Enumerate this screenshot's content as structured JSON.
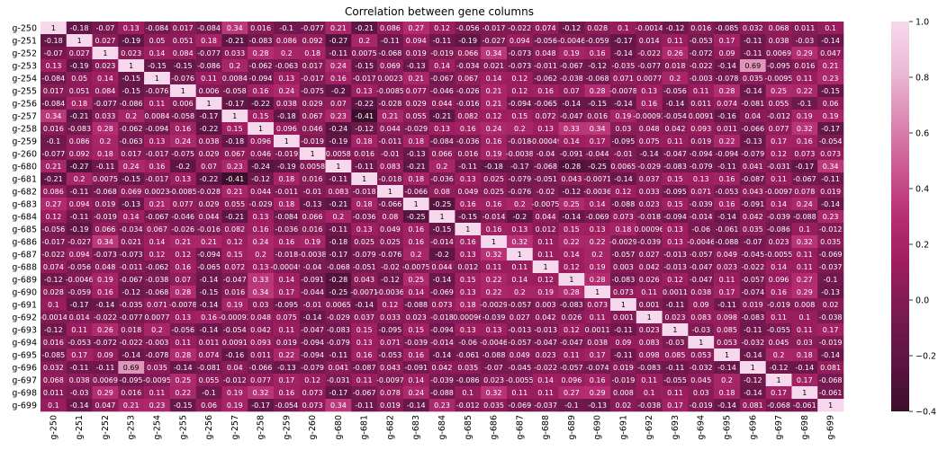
{
  "chart_data": {
    "type": "heatmap",
    "title": "Correlation between gene columns",
    "xlabel": "",
    "ylabel": "",
    "labels": [
      "g-250",
      "g-251",
      "g-252",
      "g-253",
      "g-254",
      "g-255",
      "g-256",
      "g-257",
      "g-258",
      "g-259",
      "g-260",
      "g-680",
      "g-681",
      "g-682",
      "g-683",
      "g-684",
      "g-685",
      "g-686",
      "g-687",
      "g-688",
      "g-689",
      "g-690",
      "g-691",
      "g-692",
      "g-693",
      "g-694",
      "g-695",
      "g-696",
      "g-697",
      "g-698",
      "g-699"
    ],
    "matrix": [
      [
        "1",
        "-0.18",
        "-0.07",
        "0.13",
        "-0.084",
        "0.017",
        "-0.084",
        "0.34",
        "0.016",
        "-0.1",
        "-0.077",
        "0.21",
        "-0.21",
        "0.086",
        "0.27",
        "0.12",
        "-0.056",
        "-0.017",
        "-0.022",
        "0.074",
        "-0.12",
        "0.028",
        "0.1",
        "-0.0014",
        "-0.12",
        "0.016",
        "-0.085",
        "0.032",
        "0.068",
        "0.011",
        "0.1"
      ],
      [
        "-0.18",
        "1",
        "0.027",
        "-0.19",
        "0.05",
        "0.051",
        "0.18",
        "-0.21",
        "-0.083",
        "0.086",
        "0.092",
        "-0.27",
        "0.2",
        "-0.11",
        "0.094",
        "-0.11",
        "-0.19",
        "-0.027",
        "0.094",
        "-0.056",
        "-0.0046",
        "-0.059",
        "-0.17",
        "0.014",
        "0.11",
        "-0.053",
        "0.17",
        "-0.11",
        "0.038",
        "-0.03",
        "-0.14"
      ],
      [
        "-0.07",
        "0.027",
        "1",
        "0.023",
        "0.14",
        "0.084",
        "-0.077",
        "0.033",
        "0.28",
        "0.2",
        "0.18",
        "-0.11",
        "0.0075",
        "-0.068",
        "0.019",
        "-0.019",
        "0.066",
        "0.34",
        "-0.073",
        "0.048",
        "0.19",
        "0.16",
        "-0.14",
        "-0.022",
        "0.26",
        "-0.072",
        "0.09",
        "-0.11",
        "0.0069",
        "0.29",
        "0.047"
      ],
      [
        "0.13",
        "-0.19",
        "0.023",
        "1",
        "-0.15",
        "-0.15",
        "-0.086",
        "0.2",
        "-0.062",
        "-0.063",
        "0.017",
        "0.24",
        "-0.15",
        "0.069",
        "-0.13",
        "0.14",
        "-0.034",
        "0.021",
        "-0.073",
        "-0.011",
        "-0.067",
        "-0.12",
        "-0.035",
        "-0.077",
        "0.018",
        "-0.022",
        "-0.14",
        "0.69",
        "-0.095",
        "0.016",
        "0.21"
      ],
      [
        "-0.084",
        "0.05",
        "0.14",
        "-0.15",
        "1",
        "-0.076",
        "0.11",
        "0.0084",
        "-0.094",
        "0.13",
        "-0.017",
        "0.16",
        "-0.017",
        "0.0023",
        "0.21",
        "-0.067",
        "0.067",
        "0.14",
        "0.12",
        "-0.062",
        "-0.038",
        "-0.068",
        "0.071",
        "0.0077",
        "0.2",
        "-0.003",
        "-0.078",
        "0.035",
        "-0.0095",
        "0.11",
        "0.23"
      ],
      [
        "0.017",
        "0.051",
        "0.084",
        "-0.15",
        "-0.076",
        "1",
        "0.006",
        "-0.058",
        "0.16",
        "0.24",
        "-0.075",
        "-0.2",
        "0.13",
        "-0.0085",
        "0.077",
        "-0.046",
        "-0.026",
        "0.21",
        "0.12",
        "0.16",
        "0.07",
        "0.28",
        "-0.0078",
        "0.13",
        "-0.056",
        "0.11",
        "0.28",
        "-0.14",
        "0.25",
        "0.22",
        "-0.15"
      ],
      [
        "-0.084",
        "0.18",
        "-0.077",
        "-0.086",
        "0.11",
        "0.006",
        "1",
        "-0.17",
        "-0.22",
        "0.038",
        "0.029",
        "0.07",
        "-0.22",
        "-0.028",
        "0.029",
        "0.044",
        "-0.016",
        "0.21",
        "-0.094",
        "-0.065",
        "-0.14",
        "-0.15",
        "-0.14",
        "0.16",
        "-0.14",
        "0.011",
        "0.074",
        "-0.081",
        "0.055",
        "-0.1",
        "0.06"
      ],
      [
        "0.34",
        "-0.21",
        "0.033",
        "0.2",
        "0.0084",
        "-0.058",
        "-0.17",
        "1",
        "0.15",
        "-0.18",
        "0.067",
        "0.23",
        "-0.41",
        "0.21",
        "0.055",
        "-0.21",
        "0.082",
        "0.12",
        "0.15",
        "0.072",
        "-0.047",
        "0.016",
        "0.19",
        "-0.00092",
        "-0.054",
        "0.0091",
        "-0.16",
        "0.04",
        "-0.012",
        "0.19",
        "0.19"
      ],
      [
        "0.016",
        "-0.083",
        "0.28",
        "-0.062",
        "-0.094",
        "0.16",
        "-0.22",
        "0.15",
        "1",
        "0.096",
        "0.046",
        "-0.24",
        "-0.12",
        "0.044",
        "-0.029",
        "0.13",
        "0.16",
        "0.24",
        "0.2",
        "0.13",
        "0.33",
        "0.34",
        "0.03",
        "0.048",
        "0.042",
        "0.093",
        "0.011",
        "-0.066",
        "0.077",
        "0.32",
        "-0.17"
      ],
      [
        "-0.1",
        "0.086",
        "0.2",
        "-0.063",
        "0.13",
        "0.24",
        "0.038",
        "-0.18",
        "0.096",
        "1",
        "-0.019",
        "-0.19",
        "0.18",
        "-0.011",
        "0.18",
        "-0.084",
        "-0.036",
        "0.16",
        "-0.018",
        "-0.00049",
        "0.14",
        "0.17",
        "-0.095",
        "0.075",
        "0.11",
        "0.019",
        "0.22",
        "-0.13",
        "0.17",
        "0.16",
        "-0.054"
      ],
      [
        "-0.077",
        "0.092",
        "0.18",
        "0.017",
        "-0.017",
        "-0.075",
        "0.029",
        "0.067",
        "0.046",
        "-0.019",
        "1",
        "0.0058",
        "0.016",
        "-0.01",
        "-0.13",
        "0.066",
        "0.016",
        "0.19",
        "-0.0038",
        "-0.04",
        "-0.091",
        "-0.044",
        "-0.01",
        "-0.14",
        "-0.047",
        "-0.094",
        "-0.094",
        "-0.079",
        "0.12",
        "0.073",
        "0.073"
      ],
      [
        "0.21",
        "-0.27",
        "-0.11",
        "0.24",
        "0.16",
        "-0.2",
        "0.07",
        "0.23",
        "-0.24",
        "-0.19",
        "0.0058",
        "1",
        "-0.11",
        "0.083",
        "-0.21",
        "0.2",
        "-0.11",
        "-0.18",
        "-0.17",
        "-0.068",
        "-0.28",
        "-0.25",
        "0.0065",
        "-0.029",
        "-0.083",
        "-0.079",
        "-0.11",
        "0.041",
        "-0.031",
        "-0.17",
        "0.34"
      ],
      [
        "-0.21",
        "0.2",
        "0.0075",
        "-0.15",
        "-0.017",
        "0.13",
        "-0.22",
        "-0.41",
        "-0.12",
        "0.18",
        "0.016",
        "-0.11",
        "1",
        "-0.018",
        "0.18",
        "-0.036",
        "0.13",
        "0.025",
        "-0.079",
        "-0.051",
        "0.043",
        "-0.0071",
        "-0.14",
        "0.037",
        "0.15",
        "0.13",
        "0.16",
        "-0.087",
        "0.11",
        "-0.067",
        "-0.11"
      ],
      [
        "0.086",
        "-0.11",
        "-0.068",
        "0.069",
        "0.0023",
        "-0.0085",
        "-0.028",
        "0.21",
        "0.044",
        "-0.011",
        "-0.01",
        "0.083",
        "-0.018",
        "1",
        "-0.066",
        "0.08",
        "0.049",
        "0.025",
        "-0.076",
        "-0.02",
        "-0.12",
        "-0.0036",
        "0.12",
        "0.033",
        "-0.095",
        "0.071",
        "-0.053",
        "0.043",
        "-0.0097",
        "0.078",
        "0.019"
      ],
      [
        "0.27",
        "0.094",
        "0.019",
        "-0.13",
        "0.21",
        "0.077",
        "0.029",
        "0.055",
        "-0.029",
        "0.18",
        "-0.13",
        "-0.21",
        "0.18",
        "-0.066",
        "1",
        "-0.25",
        "0.16",
        "0.16",
        "0.2",
        "-0.0075",
        "0.25",
        "0.14",
        "-0.088",
        "0.023",
        "0.15",
        "-0.039",
        "0.16",
        "-0.091",
        "0.14",
        "0.24",
        "-0.14"
      ],
      [
        "0.12",
        "-0.11",
        "-0.019",
        "0.14",
        "-0.067",
        "-0.046",
        "0.044",
        "-0.21",
        "0.13",
        "-0.084",
        "0.066",
        "0.2",
        "-0.036",
        "0.08",
        "-0.25",
        "1",
        "-0.15",
        "-0.014",
        "-0.2",
        "0.044",
        "-0.14",
        "-0.069",
        "0.073",
        "-0.018",
        "-0.094",
        "-0.014",
        "-0.14",
        "0.042",
        "-0.039",
        "-0.088",
        "0.23"
      ],
      [
        "-0.056",
        "-0.19",
        "0.066",
        "-0.034",
        "0.067",
        "-0.026",
        "-0.016",
        "0.082",
        "0.16",
        "-0.036",
        "0.016",
        "-0.11",
        "0.13",
        "0.049",
        "0.16",
        "-0.15",
        "1",
        "0.16",
        "0.13",
        "0.012",
        "0.15",
        "0.13",
        "0.18",
        "0.00096",
        "0.13",
        "-0.06",
        "-0.061",
        "0.035",
        "-0.086",
        "0.1",
        "-0.012"
      ],
      [
        "-0.017",
        "-0.027",
        "0.34",
        "0.021",
        "0.14",
        "0.21",
        "0.21",
        "0.12",
        "0.24",
        "0.16",
        "0.19",
        "-0.18",
        "0.025",
        "0.025",
        "0.16",
        "-0.014",
        "0.16",
        "1",
        "0.32",
        "0.11",
        "0.22",
        "0.22",
        "-0.0029",
        "-0.039",
        "0.13",
        "-0.0046",
        "-0.088",
        "-0.07",
        "0.023",
        "0.32",
        "0.035"
      ],
      [
        "-0.022",
        "0.094",
        "-0.073",
        "-0.073",
        "0.12",
        "0.12",
        "-0.094",
        "0.15",
        "0.2",
        "-0.018",
        "-0.0038",
        "-0.17",
        "-0.079",
        "-0.076",
        "0.2",
        "-0.2",
        "0.13",
        "0.32",
        "1",
        "0.11",
        "0.14",
        "0.2",
        "-0.057",
        "0.027",
        "-0.013",
        "-0.057",
        "0.049",
        "-0.045",
        "-0.0055",
        "0.11",
        "-0.069"
      ],
      [
        "0.074",
        "-0.056",
        "0.048",
        "-0.011",
        "-0.062",
        "0.16",
        "-0.065",
        "0.072",
        "0.13",
        "-0.00049",
        "-0.04",
        "-0.068",
        "-0.051",
        "-0.02",
        "-0.0075",
        "0.044",
        "0.012",
        "0.11",
        "0.11",
        "1",
        "0.12",
        "0.19",
        "0.003",
        "0.042",
        "-0.013",
        "-0.047",
        "0.023",
        "-0.022",
        "0.14",
        "0.11",
        "-0.037"
      ],
      [
        "-0.12",
        "-0.0046",
        "0.19",
        "-0.067",
        "-0.038",
        "0.07",
        "-0.14",
        "-0.047",
        "0.33",
        "0.14",
        "-0.091",
        "-0.28",
        "0.043",
        "-0.12",
        "0.25",
        "-0.14",
        "0.15",
        "0.22",
        "0.14",
        "0.12",
        "1",
        "0.28",
        "-0.083",
        "0.026",
        "0.12",
        "-0.047",
        "0.11",
        "-0.057",
        "0.096",
        "0.27",
        "-0.1"
      ],
      [
        "0.028",
        "-0.059",
        "0.16",
        "-0.12",
        "-0.068",
        "0.28",
        "-0.15",
        "0.016",
        "0.34",
        "0.17",
        "-0.044",
        "-0.25",
        "-0.0071",
        "-0.0036",
        "0.14",
        "-0.069",
        "0.13",
        "0.22",
        "0.2",
        "0.19",
        "0.28",
        "1",
        "0.073",
        "0.11",
        "0.0011",
        "0.038",
        "0.17",
        "-0.074",
        "0.16",
        "0.29",
        "-0.13"
      ],
      [
        "0.1",
        "-0.17",
        "-0.14",
        "-0.035",
        "0.071",
        "-0.0078",
        "-0.14",
        "0.19",
        "0.03",
        "-0.095",
        "-0.01",
        "0.0065",
        "-0.14",
        "0.12",
        "-0.088",
        "0.073",
        "0.18",
        "-0.0029",
        "-0.057",
        "0.003",
        "-0.083",
        "0.073",
        "1",
        "0.001",
        "-0.11",
        "0.09",
        "-0.11",
        "0.019",
        "-0.019",
        "0.008",
        "0.02"
      ],
      [
        "-0.0014",
        "0.014",
        "-0.022",
        "-0.077",
        "0.0077",
        "0.13",
        "0.16",
        "-0.00092",
        "0.048",
        "0.075",
        "-0.14",
        "-0.029",
        "0.037",
        "0.033",
        "0.023",
        "-0.018",
        "0.00096",
        "-0.039",
        "0.027",
        "0.042",
        "0.026",
        "0.11",
        "0.001",
        "1",
        "0.023",
        "0.083",
        "0.098",
        "-0.083",
        "0.11",
        "0.1",
        "-0.038"
      ],
      [
        "-0.12",
        "0.11",
        "0.26",
        "0.018",
        "0.2",
        "-0.056",
        "-0.14",
        "-0.054",
        "0.042",
        "0.11",
        "-0.047",
        "-0.083",
        "0.15",
        "-0.095",
        "0.15",
        "-0.094",
        "0.13",
        "0.13",
        "-0.013",
        "-0.013",
        "0.12",
        "0.0011",
        "-0.11",
        "0.023",
        "1",
        "-0.03",
        "0.085",
        "-0.11",
        "-0.055",
        "0.11",
        "0.17"
      ],
      [
        "0.016",
        "-0.053",
        "-0.072",
        "-0.022",
        "-0.003",
        "0.11",
        "0.011",
        "0.0091",
        "0.093",
        "0.019",
        "-0.094",
        "-0.079",
        "0.13",
        "0.071",
        "-0.039",
        "-0.014",
        "-0.06",
        "-0.0046",
        "-0.057",
        "-0.047",
        "-0.047",
        "0.038",
        "0.09",
        "0.083",
        "-0.03",
        "1",
        "0.053",
        "-0.032",
        "0.045",
        "0.03",
        "-0.019"
      ],
      [
        "-0.085",
        "0.17",
        "0.09",
        "-0.14",
        "-0.078",
        "0.28",
        "0.074",
        "-0.16",
        "0.011",
        "0.22",
        "-0.094",
        "-0.11",
        "0.16",
        "-0.053",
        "0.16",
        "-0.14",
        "-0.061",
        "-0.088",
        "0.049",
        "0.023",
        "0.11",
        "0.17",
        "-0.11",
        "0.098",
        "0.085",
        "0.053",
        "1",
        "-0.14",
        "0.2",
        "0.18",
        "-0.14"
      ],
      [
        "0.032",
        "-0.11",
        "-0.11",
        "0.69",
        "0.035",
        "-0.14",
        "-0.081",
        "0.04",
        "-0.066",
        "-0.13",
        "-0.079",
        "0.041",
        "-0.087",
        "0.043",
        "-0.091",
        "0.042",
        "0.035",
        "-0.07",
        "-0.045",
        "-0.022",
        "-0.057",
        "-0.074",
        "0.019",
        "-0.083",
        "-0.11",
        "-0.032",
        "-0.14",
        "1",
        "-0.12",
        "-0.14",
        "0.081"
      ],
      [
        "0.068",
        "0.038",
        "0.0069",
        "-0.095",
        "-0.0095",
        "0.25",
        "0.055",
        "-0.012",
        "0.077",
        "0.17",
        "0.12",
        "-0.031",
        "0.11",
        "-0.0097",
        "0.14",
        "-0.039",
        "-0.086",
        "0.023",
        "-0.0055",
        "0.14",
        "0.096",
        "0.16",
        "-0.019",
        "0.11",
        "-0.055",
        "0.045",
        "0.2",
        "-0.12",
        "1",
        "0.17",
        "-0.068"
      ],
      [
        "0.011",
        "-0.03",
        "0.29",
        "0.016",
        "0.11",
        "0.22",
        "-0.1",
        "0.19",
        "0.32",
        "0.16",
        "0.073",
        "-0.17",
        "-0.067",
        "0.078",
        "0.24",
        "-0.088",
        "0.1",
        "0.32",
        "0.11",
        "0.11",
        "0.27",
        "0.29",
        "0.008",
        "0.1",
        "0.11",
        "0.03",
        "0.18",
        "-0.14",
        "0.17",
        "1",
        "-0.061"
      ],
      [
        "0.1",
        "-0.14",
        "0.047",
        "0.21",
        "0.23",
        "-0.15",
        "0.06",
        "0.19",
        "-0.17",
        "-0.054",
        "0.073",
        "0.34",
        "-0.11",
        "0.019",
        "-0.14",
        "0.23",
        "-0.012",
        "0.035",
        "-0.069",
        "-0.037",
        "-0.1",
        "-0.13",
        "0.02",
        "-0.038",
        "0.17",
        "-0.019",
        "-0.14",
        "0.081",
        "-0.068",
        "-0.061",
        "1"
      ]
    ],
    "colorbar": {
      "min": -0.4,
      "max": 1.0,
      "ticks": [
        "1.0",
        "0.8",
        "0.6",
        "0.4",
        "0.2",
        "0.0",
        "−0.2",
        "−0.4"
      ],
      "colors": [
        "#3d0f2c",
        "#5c1444",
        "#7a1a52",
        "#9d1e60",
        "#b62e74",
        "#cc5a93",
        "#dd8ab3",
        "#ecbbd6",
        "#f7d7ec"
      ]
    },
    "legend": "right"
  }
}
